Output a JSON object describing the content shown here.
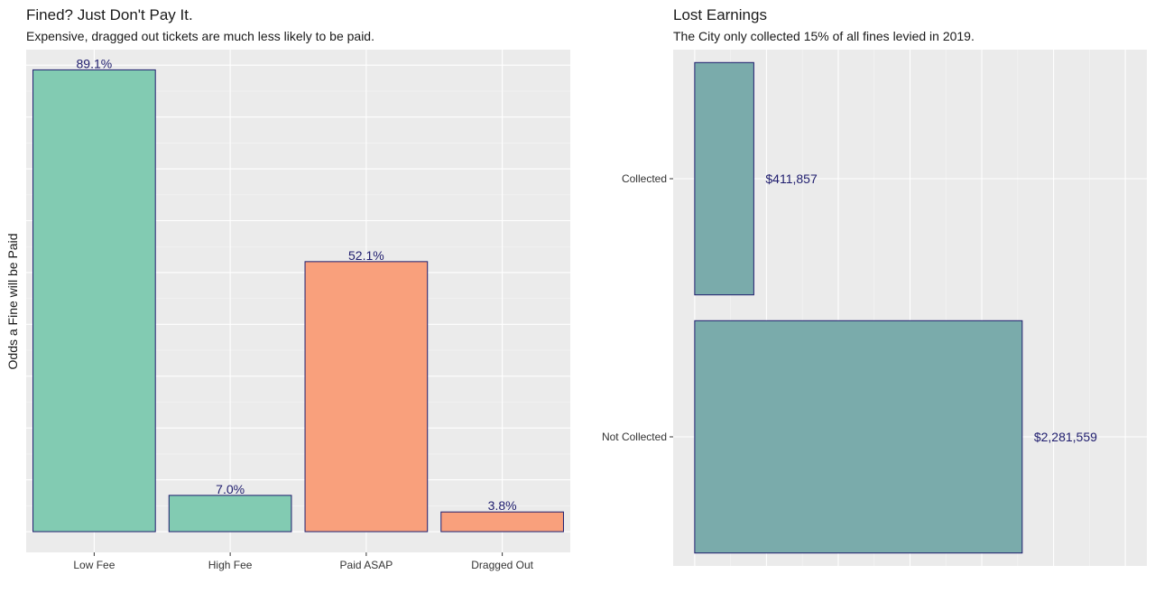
{
  "chart_data": [
    {
      "type": "bar",
      "title": "Fined? Just Don't Pay It.",
      "subtitle": "Expensive, dragged out tickets are much less likely to be paid.",
      "xlabel": "",
      "ylabel": "Odds a Fine will be Paid",
      "categories": [
        "Low Fee",
        "High Fee",
        "Paid ASAP",
        "Dragged Out"
      ],
      "values": [
        89.1,
        7.0,
        52.1,
        3.8
      ],
      "labels": [
        "89.1%",
        "7.0%",
        "52.1%",
        "3.8%"
      ],
      "colors": [
        "#82cbb2",
        "#82cbb2",
        "#f9a07c",
        "#f9a07c"
      ],
      "outline": "#1f1d6e",
      "ylim": [
        -4,
        93
      ],
      "grid": true,
      "y_tick_labels_shown": false
    },
    {
      "type": "bar",
      "orientation": "horizontal",
      "title": "Lost Earnings",
      "subtitle": "The City only collected 15% of all fines levied in 2019.",
      "xlabel": "",
      "ylabel": "",
      "categories": [
        "Collected",
        "Not Collected"
      ],
      "values": [
        411857,
        2281559
      ],
      "labels": [
        "$411,857",
        "$2,281,559"
      ],
      "colors": [
        "#7aabab",
        "#7aabab"
      ],
      "outline": "#1f1d6e",
      "xlim": [
        -150000,
        3150000
      ],
      "grid": true,
      "x_tick_labels_shown": false
    }
  ]
}
